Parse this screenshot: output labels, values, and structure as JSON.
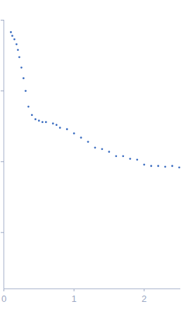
{
  "chart_data": {
    "type": "scatter",
    "color": "#3a6cc0",
    "marker": "circle",
    "log": "y",
    "grid": false,
    "tick_labels": "x",
    "x": [
      0.1,
      0.12,
      0.15,
      0.18,
      0.2,
      0.22,
      0.25,
      0.28,
      0.31,
      0.35,
      0.4,
      0.45,
      0.5,
      0.55,
      0.6,
      0.7,
      0.75,
      0.8,
      0.9,
      1.0,
      1.1,
      1.2,
      1.3,
      1.4,
      1.5,
      1.6,
      1.7,
      1.8,
      1.9,
      2.0,
      2.1,
      2.2,
      2.3,
      2.4,
      2.5
    ],
    "values": [
      0.676,
      0.6,
      0.537,
      0.457,
      0.38,
      0.3,
      0.214,
      0.151,
      0.1,
      0.06,
      0.0457,
      0.0398,
      0.038,
      0.0363,
      0.0363,
      0.0347,
      0.0331,
      0.0302,
      0.0288,
      0.0251,
      0.0219,
      0.0191,
      0.0158,
      0.0151,
      0.0138,
      0.012,
      0.012,
      0.011,
      0.0107,
      0.0091,
      0.0087,
      0.0087,
      0.0085,
      0.0087,
      0.0083
    ],
    "xlim": [
      0,
      2.52
    ],
    "xticks": [
      0,
      1,
      2
    ],
    "ylim": [
      0.00016,
      1
    ],
    "yticks": [
      0.001,
      0.01,
      0.1,
      1
    ]
  }
}
